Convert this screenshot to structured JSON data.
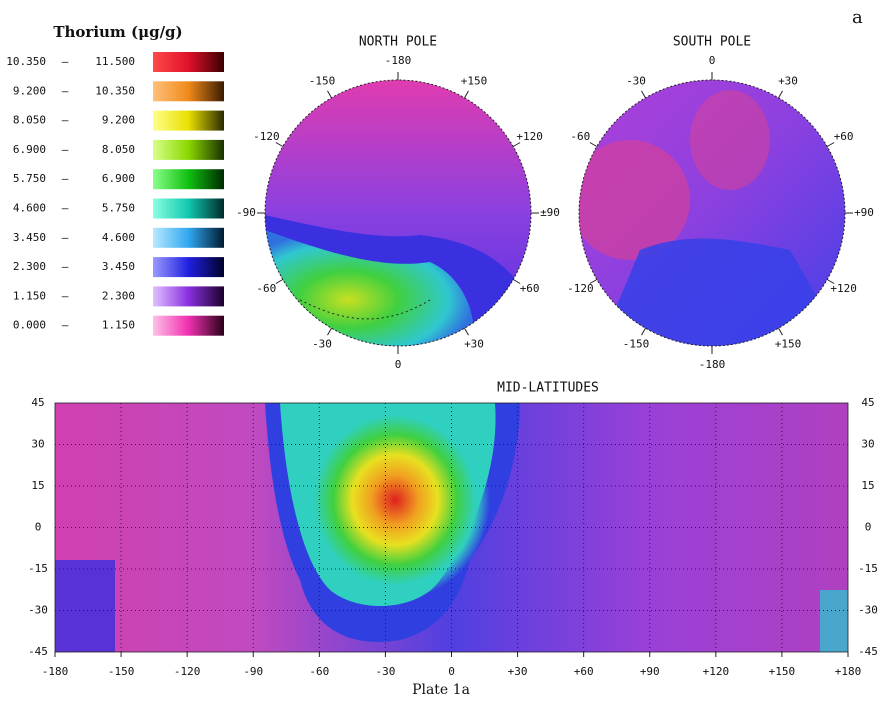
{
  "corner_label": "a",
  "legend": {
    "title": "Thorium (μg/g)",
    "rows": [
      {
        "from": "10.350",
        "dash": "–",
        "to": "11.500",
        "colors": [
          "#ff4a4a",
          "#e0102a",
          "#3a0000"
        ]
      },
      {
        "from": "9.200",
        "dash": "–",
        "to": "10.350",
        "colors": [
          "#ffc07a",
          "#f08a1a",
          "#3a1a00"
        ]
      },
      {
        "from": "8.050",
        "dash": "–",
        "to": "9.200",
        "colors": [
          "#ffff8a",
          "#e8e000",
          "#2a2a00"
        ]
      },
      {
        "from": "6.900",
        "dash": "–",
        "to": "8.050",
        "colors": [
          "#d8ff8a",
          "#8ad800",
          "#1a3000"
        ]
      },
      {
        "from": "5.750",
        "dash": "–",
        "to": "6.900",
        "colors": [
          "#8aff8a",
          "#10c010",
          "#002a00"
        ]
      },
      {
        "from": "4.600",
        "dash": "–",
        "to": "5.750",
        "colors": [
          "#8affe0",
          "#10c8b0",
          "#002a2a"
        ]
      },
      {
        "from": "3.450",
        "dash": "–",
        "to": "4.600",
        "colors": [
          "#b8e8ff",
          "#30a8f0",
          "#001a30"
        ]
      },
      {
        "from": "2.300",
        "dash": "–",
        "to": "3.450",
        "colors": [
          "#9a9aff",
          "#2020e0",
          "#00002a"
        ]
      },
      {
        "from": "1.150",
        "dash": "–",
        "to": "2.300",
        "colors": [
          "#e0c0ff",
          "#8a30e0",
          "#1a002a"
        ]
      },
      {
        "from": "0.000",
        "dash": "–",
        "to": "1.150",
        "colors": [
          "#ffc0e8",
          "#f030b0",
          "#2a0018"
        ]
      }
    ]
  },
  "north_pole": {
    "title": "NORTH POLE",
    "labels": [
      "-180",
      "+150",
      "+120",
      "±90",
      "+60",
      "+30",
      "0",
      "-30",
      "-60",
      "-90",
      "-120",
      "-150"
    ]
  },
  "south_pole": {
    "title": "SOUTH POLE",
    "labels": [
      "0",
      "+30",
      "+60",
      "+90",
      "+120",
      "+150",
      "-180",
      "-150",
      "-120",
      null,
      "-60",
      "-30"
    ]
  },
  "mid_latitudes": {
    "title": "MID-LATITUDES",
    "y_labels_left": [
      "45",
      "30",
      "15",
      "0",
      "-15",
      "-30",
      "-45"
    ],
    "y_labels_right": [
      "45",
      "30",
      "15",
      "0",
      "-15",
      "-30",
      "-45"
    ],
    "x_labels": [
      "-180",
      "-150",
      "-120",
      "-90",
      "-60",
      "-30",
      "0",
      "+30",
      "+60",
      "+90",
      "+120",
      "+150",
      "+180"
    ]
  },
  "caption": "Plate 1a"
}
